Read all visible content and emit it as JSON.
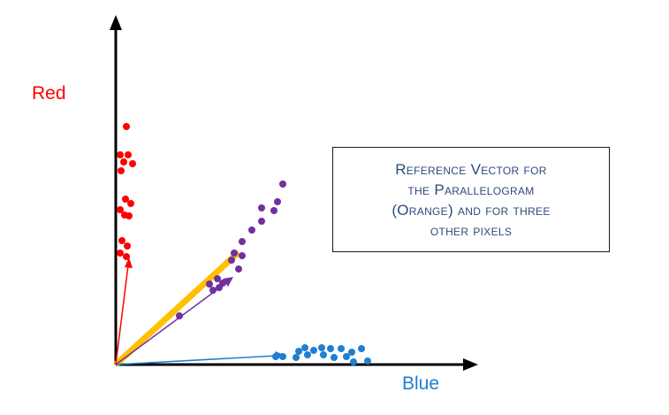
{
  "labels": {
    "red_axis": "Red",
    "blue_axis": "Blue"
  },
  "callout": {
    "lines": [
      "Reference Vector for",
      "the Parallelogram",
      "(Orange) and for three",
      "other pixels"
    ]
  },
  "colors": {
    "axis": "#000000",
    "red": "#ff0000",
    "blue": "#1f7fd0",
    "purple": "#7030a0",
    "orange": "#ffc000",
    "callout_text": "#2e4a7a"
  }
}
